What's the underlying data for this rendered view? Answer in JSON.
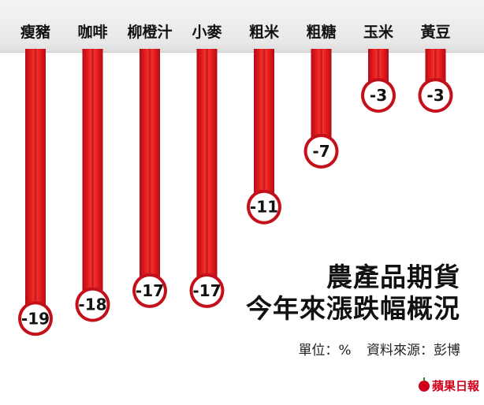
{
  "chart_data": {
    "type": "bar",
    "title": "農產品期貨",
    "subtitle": "今年來漲跌幅概況",
    "categories": [
      "瘦豬",
      "咖啡",
      "柳橙汁",
      "小麥",
      "粗米",
      "粗糖",
      "玉米",
      "黃豆"
    ],
    "values": [
      -19,
      -18,
      -17,
      -17,
      -11,
      -7,
      -3,
      -3
    ],
    "value_labels": [
      "-19",
      "-18",
      "-17",
      "-17",
      "-11",
      "-7",
      "-3",
      "-3"
    ],
    "ylim": [
      -19.5,
      0
    ],
    "bar_color": "#d4121c",
    "bar_highlight_color": "#ff3a36",
    "label_circle_border": "#b00010",
    "legend": "none",
    "grid": false
  },
  "notes": {
    "unit": "單位：%",
    "source": "資料來源：彭博"
  },
  "brand": {
    "name": "蘋果日報",
    "color": "#d0021b",
    "icon": "apple-icon"
  }
}
